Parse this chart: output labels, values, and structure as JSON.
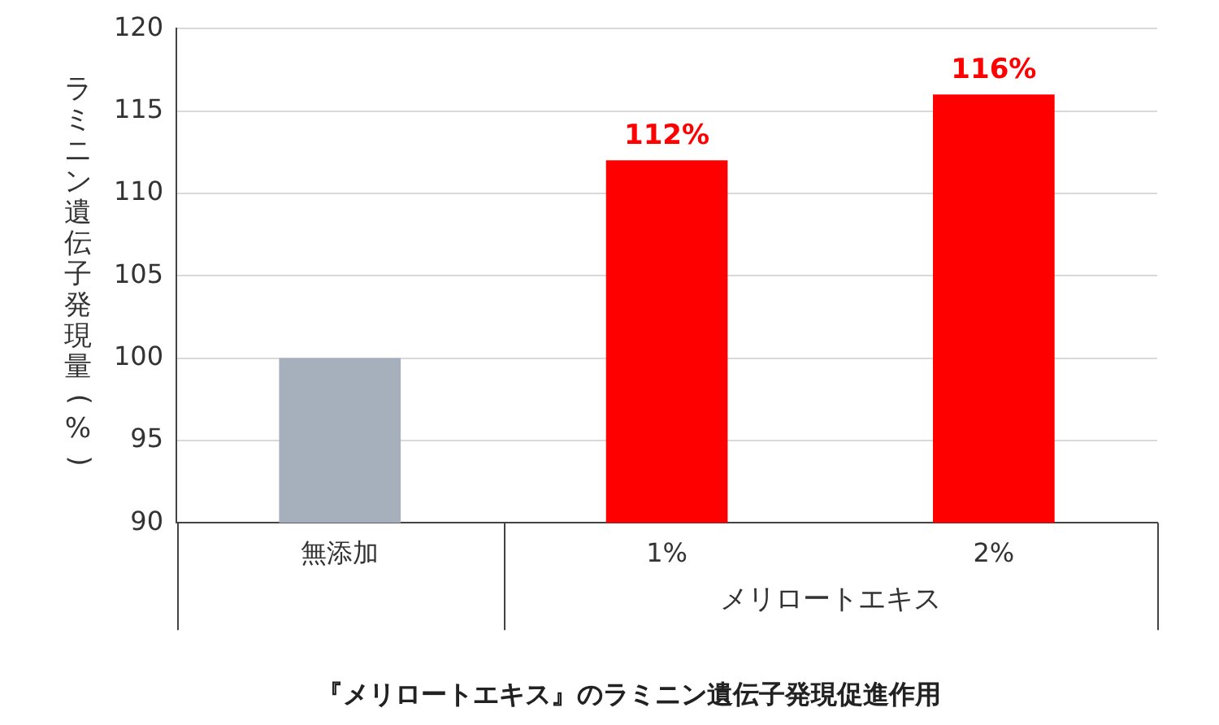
{
  "chart_data": {
    "type": "bar",
    "title": "『メリロートエキス』のラミニン遺伝子発現促進作用",
    "xlabel": "メリロートエキス",
    "ylabel": "ラミニン遺伝子発現量(%)",
    "categories": [
      "無添加",
      "1%",
      "2%"
    ],
    "values": [
      100,
      112,
      116
    ],
    "colors": [
      "#a5b0bc",
      "#ff0000",
      "#ff0000"
    ],
    "value_labels": [
      null,
      "112%",
      "116%"
    ],
    "ylim": [
      90,
      120
    ],
    "yticks": [
      90,
      95,
      100,
      105,
      110,
      115,
      120
    ],
    "grid": "y",
    "legend": false
  }
}
